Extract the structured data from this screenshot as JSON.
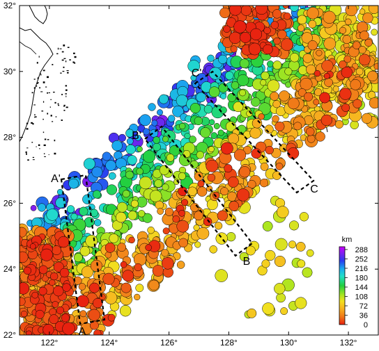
{
  "map": {
    "lon_range": [
      121,
      133
    ],
    "lat_range": [
      22,
      32
    ],
    "lon_ticks": [
      "122°",
      "124°",
      "126°",
      "128°",
      "130°",
      "132°"
    ],
    "lat_ticks": [
      "22°",
      "24°",
      "26°",
      "28°",
      "30°",
      "32°"
    ],
    "background": "#ffffff",
    "coastline_color": "#000000"
  },
  "sections": [
    {
      "start": "A",
      "end": "A'"
    },
    {
      "start": "B",
      "end": "B'"
    },
    {
      "start": "C",
      "end": "C'"
    }
  ],
  "colorbar": {
    "unit": "km",
    "ticks": [
      "288",
      "252",
      "216",
      "180",
      "144",
      "108",
      "72",
      "36",
      "0"
    ],
    "colors": [
      "#cc00ff",
      "#7a22ee",
      "#2a3cf0",
      "#1aa8f0",
      "#22e0c8",
      "#22d040",
      "#a8e620",
      "#f2e020",
      "#f7b020",
      "#f07818",
      "#e82010"
    ]
  }
}
